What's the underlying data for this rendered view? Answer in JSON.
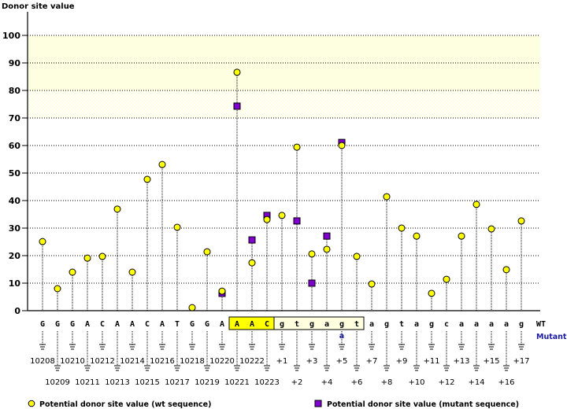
{
  "chart_data": {
    "type": "scatter",
    "title": "",
    "ylabel": "Donor site value",
    "xlabel": "",
    "ylim": [
      0,
      100
    ],
    "yticks": [
      0,
      10,
      20,
      30,
      40,
      50,
      60,
      70,
      80,
      90,
      100
    ],
    "grid": true,
    "highlight_band": [
      70,
      100
    ],
    "bases_wt": [
      "G",
      "G",
      "G",
      "A",
      "C",
      "A",
      "A",
      "C",
      "A",
      "T",
      "G",
      "G",
      "A",
      "A",
      "A",
      "C",
      "g",
      "t",
      "g",
      "a",
      "g",
      "t",
      "a",
      "g",
      "t",
      "a",
      "g",
      "c",
      "a",
      "a",
      "a",
      "a",
      "g"
    ],
    "positions": [
      "10208",
      "10209",
      "10210",
      "10211",
      "10212",
      "10213",
      "10214",
      "10215",
      "10216",
      "10217",
      "10218",
      "10219",
      "10220",
      "10221",
      "10222",
      "10223",
      "+1",
      "+2",
      "+3",
      "+4",
      "+5",
      "+6",
      "+7",
      "+8",
      "+9",
      "+10",
      "+11",
      "+12",
      "+13",
      "+14",
      "+15",
      "+16",
      "+17"
    ],
    "exon_highlight_indices": [
      13,
      14,
      15
    ],
    "intron_box_indices": [
      16,
      17,
      18,
      19,
      20,
      21
    ],
    "mutation": {
      "index": 20,
      "mutant_base": "a"
    },
    "row_labels": {
      "wt": "WT",
      "mutant": "Mutant"
    },
    "series": [
      {
        "name": "Potential donor site value (wt sequence)",
        "marker": "circle",
        "color": "#ffff00",
        "values": [
          25.1,
          8.0,
          14.0,
          19.1,
          19.7,
          36.9,
          14.0,
          47.7,
          53.1,
          30.3,
          1.1,
          21.4,
          7.1,
          86.6,
          17.4,
          33.1,
          34.6,
          59.4,
          20.6,
          22.3,
          60.0,
          19.7,
          9.7,
          41.4,
          30.0,
          27.1,
          6.3,
          11.4,
          27.1,
          38.6,
          29.7,
          14.9,
          32.6
        ]
      },
      {
        "name": "Potential donor site value (mutant sequence)",
        "marker": "square",
        "color": "#8000d0",
        "values": [
          null,
          null,
          null,
          null,
          null,
          null,
          null,
          null,
          null,
          null,
          null,
          null,
          6.3,
          74.3,
          25.7,
          34.6,
          null,
          32.6,
          10.0,
          27.1,
          61.1,
          null,
          null,
          null,
          null,
          null,
          null,
          null,
          null,
          null,
          null,
          null,
          null
        ]
      }
    ],
    "legend_placement": "bottom"
  },
  "colors": {
    "band": "#fefee0",
    "exon_box": "#ffff00",
    "intron_box": "#ffffe0",
    "wt_marker": "#ffff00",
    "mutant_marker": "#8000d0",
    "mutant_text": "#1a1aa6"
  }
}
